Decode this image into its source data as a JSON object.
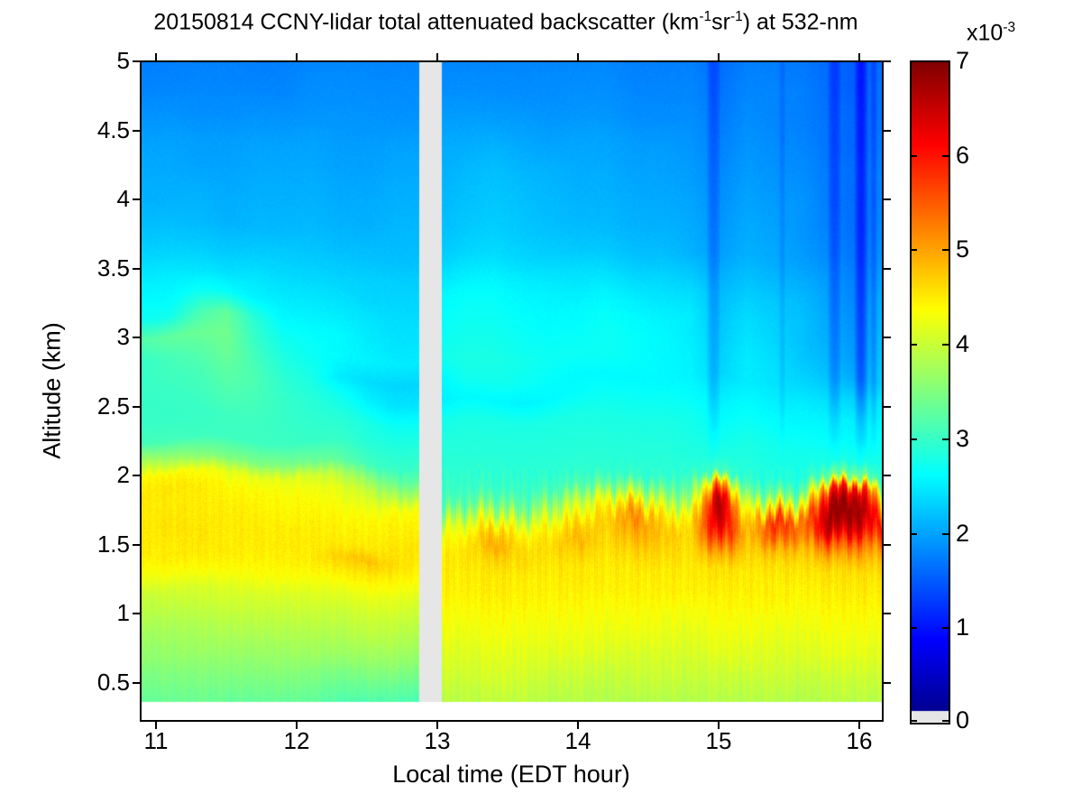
{
  "title": {
    "part1": "20150814 CCNY-lidar total attenuated backscatter (km",
    "sup1": "-1",
    "part2": "sr",
    "sup2": "-1",
    "part3": ") at 532-nm"
  },
  "axes": {
    "xlabel": "Local time (EDT hour)",
    "ylabel": "Altitude (km)",
    "x_ticks": [
      11,
      12,
      13,
      14,
      15,
      16
    ],
    "y_ticks": [
      5,
      4.5,
      4,
      3.5,
      3,
      2.5,
      2,
      1.5,
      1,
      0.5
    ]
  },
  "colorbar": {
    "ticks": [
      7,
      6,
      5,
      4,
      3,
      2,
      1,
      0
    ],
    "exponent_multiplier": "x10",
    "exponent": "-3",
    "min": 0,
    "max": 7,
    "colormap": "jet",
    "nodata_color": "#e6e6e6"
  },
  "chart_data": {
    "type": "heatmap",
    "units": "10^-3 km^-1 sr^-1",
    "xlabel": "Local time (EDT hour)",
    "ylabel": "Altitude (km)",
    "x_range": [
      10.89,
      16.16
    ],
    "y_range": [
      0.2,
      5.0
    ],
    "data_y_min": 0.36,
    "gap_time": [
      12.87,
      13.03
    ],
    "attenuation_stripes": [
      {
        "t": 14.96,
        "w": 0.05,
        "d": 0.28
      },
      {
        "t": 15.45,
        "w": 0.025,
        "d": 0.15
      },
      {
        "t": 15.82,
        "w": 0.05,
        "d": 0.32
      },
      {
        "t": 16.01,
        "w": 0.05,
        "d": 0.5
      },
      {
        "t": 16.1,
        "w": 0.025,
        "d": 0.25
      }
    ],
    "times": [
      10.9,
      11.1,
      11.3,
      11.5,
      11.7,
      11.9,
      12.1,
      12.3,
      12.5,
      12.7,
      12.85,
      13.05,
      13.2,
      13.4,
      13.6,
      13.8,
      14.0,
      14.2,
      14.4,
      14.6,
      14.8,
      15.0,
      15.2,
      15.4,
      15.6,
      15.8,
      16.0,
      16.16
    ],
    "altitudes": [
      5.0,
      4.8,
      4.6,
      4.4,
      4.2,
      4.0,
      3.8,
      3.6,
      3.45,
      3.3,
      3.15,
      3.0,
      2.85,
      2.7,
      2.55,
      2.4,
      2.25,
      2.1,
      2.0,
      1.9,
      1.8,
      1.7,
      1.6,
      1.5,
      1.4,
      1.3,
      1.15,
      1.0,
      0.85,
      0.7,
      0.55,
      0.36
    ],
    "values": [
      [
        1.75,
        1.75,
        1.75,
        1.75,
        1.75,
        1.75,
        1.8,
        1.8,
        1.8,
        1.8,
        1.8,
        1.8,
        1.8,
        1.8,
        1.8,
        1.8,
        1.8,
        1.8,
        1.75,
        1.75,
        1.75,
        1.6,
        1.75,
        1.75,
        1.7,
        1.6,
        1.5,
        1.65
      ],
      [
        1.8,
        1.8,
        1.8,
        1.8,
        1.8,
        1.8,
        1.85,
        1.85,
        1.85,
        1.85,
        1.85,
        1.85,
        1.85,
        1.85,
        1.85,
        1.85,
        1.85,
        1.85,
        1.8,
        1.8,
        1.8,
        1.65,
        1.8,
        1.8,
        1.75,
        1.6,
        1.5,
        1.7
      ],
      [
        1.9,
        1.9,
        1.85,
        1.85,
        1.9,
        1.9,
        1.9,
        1.9,
        1.9,
        1.9,
        1.9,
        1.95,
        1.95,
        1.95,
        1.95,
        1.9,
        1.9,
        1.9,
        1.85,
        1.85,
        1.85,
        1.7,
        1.85,
        1.8,
        1.75,
        1.65,
        1.55,
        1.7
      ],
      [
        2.0,
        2.0,
        1.95,
        1.95,
        2.0,
        2.0,
        2.0,
        1.95,
        1.95,
        2.0,
        2.0,
        2.05,
        2.05,
        2.1,
        2.05,
        2.0,
        2.0,
        2.0,
        1.95,
        1.95,
        1.9,
        1.75,
        1.9,
        1.85,
        1.8,
        1.65,
        1.55,
        1.75
      ],
      [
        2.05,
        2.05,
        2.0,
        2.0,
        2.05,
        2.05,
        2.05,
        2.0,
        2.0,
        2.05,
        2.05,
        2.1,
        2.15,
        2.2,
        2.15,
        2.1,
        2.05,
        2.05,
        2.0,
        2.0,
        1.95,
        1.8,
        1.95,
        1.9,
        1.85,
        1.7,
        1.6,
        1.8
      ],
      [
        2.1,
        2.1,
        2.1,
        2.05,
        2.1,
        2.1,
        2.1,
        2.05,
        2.05,
        2.1,
        2.1,
        2.15,
        2.2,
        2.25,
        2.2,
        2.15,
        2.1,
        2.1,
        2.05,
        2.05,
        2.0,
        1.85,
        2.0,
        1.95,
        1.9,
        1.7,
        1.6,
        1.8
      ],
      [
        2.2,
        2.2,
        2.15,
        2.1,
        2.15,
        2.15,
        2.15,
        2.1,
        2.1,
        2.15,
        2.15,
        2.2,
        2.25,
        2.3,
        2.25,
        2.2,
        2.15,
        2.15,
        2.1,
        2.1,
        2.05,
        1.9,
        2.05,
        2.0,
        1.9,
        1.75,
        1.6,
        1.85
      ],
      [
        2.35,
        2.35,
        2.3,
        2.25,
        2.3,
        2.3,
        2.25,
        2.2,
        2.2,
        2.2,
        2.2,
        2.3,
        2.35,
        2.4,
        2.35,
        2.3,
        2.25,
        2.25,
        2.2,
        2.2,
        2.1,
        1.95,
        2.1,
        2.05,
        1.95,
        1.8,
        1.65,
        1.9
      ],
      [
        2.5,
        2.5,
        2.45,
        2.4,
        2.45,
        2.4,
        2.35,
        2.3,
        2.3,
        2.3,
        2.3,
        2.45,
        2.5,
        2.55,
        2.5,
        2.45,
        2.4,
        2.4,
        2.35,
        2.35,
        2.25,
        2.05,
        2.2,
        2.15,
        2.05,
        1.9,
        1.7,
        2.0
      ],
      [
        2.6,
        2.6,
        2.7,
        2.65,
        2.55,
        2.5,
        2.45,
        2.4,
        2.35,
        2.35,
        2.35,
        2.6,
        2.65,
        2.65,
        2.6,
        2.55,
        2.5,
        2.55,
        2.5,
        2.45,
        2.4,
        2.15,
        2.3,
        2.25,
        2.15,
        1.95,
        1.75,
        2.1
      ],
      [
        2.7,
        2.75,
        3.1,
        3.3,
        2.9,
        2.6,
        2.55,
        2.5,
        2.45,
        2.4,
        2.4,
        2.65,
        2.7,
        2.7,
        2.65,
        2.6,
        2.6,
        2.65,
        2.6,
        2.55,
        2.5,
        2.2,
        2.4,
        2.3,
        2.2,
        2.0,
        1.8,
        2.15
      ],
      [
        3.2,
        3.3,
        3.35,
        3.4,
        3.0,
        2.75,
        2.65,
        2.6,
        2.5,
        2.45,
        2.45,
        2.7,
        2.75,
        2.75,
        2.7,
        2.65,
        2.65,
        2.7,
        2.65,
        2.6,
        2.5,
        2.25,
        2.45,
        2.35,
        2.2,
        2.05,
        1.85,
        2.2
      ],
      [
        3.0,
        3.1,
        3.2,
        3.35,
        3.1,
        2.85,
        2.7,
        2.6,
        2.55,
        2.5,
        2.5,
        2.75,
        2.8,
        2.8,
        2.75,
        2.7,
        2.7,
        2.7,
        2.65,
        2.6,
        2.55,
        2.3,
        2.5,
        2.4,
        2.25,
        2.1,
        1.9,
        2.25
      ],
      [
        3.0,
        3.05,
        3.1,
        3.25,
        3.15,
        2.95,
        2.8,
        2.5,
        2.4,
        2.35,
        2.35,
        2.6,
        2.75,
        2.75,
        2.7,
        2.65,
        2.6,
        2.6,
        2.6,
        2.6,
        2.55,
        2.35,
        2.5,
        2.45,
        2.35,
        2.2,
        2.0,
        2.3
      ],
      [
        3.0,
        3.0,
        3.05,
        3.15,
        3.1,
        3.0,
        2.9,
        2.75,
        2.55,
        2.45,
        2.45,
        2.55,
        2.6,
        2.6,
        2.55,
        2.6,
        2.65,
        2.7,
        2.7,
        2.7,
        2.65,
        2.5,
        2.6,
        2.55,
        2.5,
        2.4,
        2.3,
        2.5
      ],
      [
        3.0,
        3.0,
        3.0,
        3.05,
        3.05,
        3.0,
        2.95,
        2.9,
        2.8,
        2.7,
        2.7,
        2.75,
        2.8,
        2.8,
        2.8,
        2.8,
        2.8,
        2.8,
        2.8,
        2.8,
        2.75,
        2.6,
        2.7,
        2.65,
        2.6,
        2.55,
        2.5,
        2.6
      ],
      [
        3.1,
        3.1,
        3.05,
        3.05,
        3.05,
        3.05,
        3.0,
        3.0,
        2.9,
        2.85,
        2.85,
        2.85,
        2.85,
        2.85,
        2.85,
        2.85,
        2.85,
        2.85,
        2.85,
        2.85,
        2.8,
        2.7,
        2.8,
        2.75,
        2.7,
        2.65,
        2.6,
        2.7
      ],
      [
        3.9,
        3.8,
        3.6,
        3.5,
        3.5,
        3.5,
        3.4,
        3.3,
        3.1,
        3.0,
        3.0,
        2.9,
        2.9,
        2.9,
        2.9,
        2.9,
        2.9,
        2.9,
        2.9,
        2.9,
        2.85,
        2.85,
        2.85,
        2.8,
        2.8,
        2.8,
        2.8,
        2.8
      ],
      [
        4.4,
        4.45,
        4.35,
        4.2,
        4.2,
        4.2,
        4.1,
        3.9,
        3.6,
        3.3,
        3.25,
        2.95,
        2.95,
        2.95,
        2.95,
        2.95,
        2.95,
        2.95,
        3.0,
        2.95,
        2.95,
        3.1,
        2.9,
        2.9,
        2.85,
        3.4,
        3.5,
        2.9
      ],
      [
        4.5,
        4.55,
        4.5,
        4.4,
        4.4,
        4.35,
        4.3,
        4.2,
        4.0,
        3.8,
        3.75,
        3.0,
        3.0,
        3.05,
        3.05,
        3.1,
        3.15,
        3.3,
        3.8,
        3.4,
        3.2,
        5.5,
        3.2,
        3.5,
        3.3,
        6.0,
        6.3,
        4.2
      ],
      [
        4.5,
        4.5,
        4.5,
        4.45,
        4.45,
        4.4,
        4.4,
        4.3,
        4.2,
        4.3,
        4.35,
        3.1,
        3.2,
        3.5,
        3.3,
        3.6,
        3.8,
        4.2,
        4.8,
        4.1,
        3.6,
        6.8,
        3.9,
        4.8,
        4.4,
        6.8,
        6.8,
        5.2
      ],
      [
        4.5,
        4.55,
        4.5,
        4.5,
        4.5,
        4.45,
        4.45,
        4.4,
        4.4,
        4.45,
        4.45,
        3.6,
        3.8,
        4.2,
        3.9,
        4.1,
        4.3,
        4.6,
        5.3,
        4.6,
        4.3,
        6.8,
        4.4,
        6.0,
        5.3,
        6.9,
        6.7,
        6.0
      ],
      [
        4.5,
        4.55,
        4.55,
        4.5,
        4.5,
        4.5,
        4.5,
        4.45,
        4.45,
        4.5,
        4.5,
        4.2,
        4.3,
        4.8,
        4.4,
        4.5,
        4.7,
        4.7,
        5.0,
        4.8,
        4.6,
        6.5,
        4.8,
        5.6,
        5.2,
        6.6,
        6.2,
        5.6
      ],
      [
        4.5,
        4.5,
        4.55,
        4.5,
        4.5,
        4.5,
        4.5,
        4.5,
        4.5,
        4.55,
        4.55,
        4.4,
        4.5,
        5.0,
        4.6,
        4.6,
        4.9,
        4.6,
        4.8,
        4.7,
        4.6,
        5.8,
        4.7,
        4.9,
        4.8,
        5.6,
        5.4,
        5.0
      ],
      [
        4.45,
        4.5,
        4.5,
        4.5,
        4.45,
        4.45,
        4.5,
        4.7,
        4.8,
        4.6,
        4.5,
        4.5,
        4.55,
        4.7,
        4.6,
        4.55,
        4.7,
        4.55,
        4.6,
        4.6,
        4.55,
        5.0,
        4.6,
        4.6,
        4.6,
        4.9,
        4.9,
        4.7
      ],
      [
        4.3,
        4.35,
        4.4,
        4.4,
        4.35,
        4.35,
        4.4,
        4.5,
        4.55,
        4.45,
        4.4,
        4.5,
        4.5,
        4.55,
        4.5,
        4.5,
        4.55,
        4.5,
        4.5,
        4.5,
        4.5,
        4.6,
        4.5,
        4.5,
        4.5,
        4.6,
        4.6,
        4.55
      ],
      [
        4.0,
        4.05,
        4.1,
        4.15,
        4.1,
        4.1,
        4.15,
        4.2,
        4.25,
        4.2,
        4.15,
        4.45,
        4.45,
        4.5,
        4.45,
        4.45,
        4.5,
        4.45,
        4.45,
        4.45,
        4.45,
        4.5,
        4.45,
        4.45,
        4.4,
        4.5,
        4.5,
        4.45
      ],
      [
        3.85,
        3.9,
        3.95,
        4.0,
        3.95,
        3.95,
        4.0,
        4.0,
        4.05,
        4.0,
        3.95,
        4.35,
        4.35,
        4.4,
        4.35,
        4.35,
        4.4,
        4.35,
        4.35,
        4.3,
        4.3,
        4.4,
        4.35,
        4.3,
        4.3,
        4.4,
        4.4,
        4.35
      ],
      [
        3.7,
        3.75,
        3.8,
        3.85,
        3.8,
        3.8,
        3.85,
        3.85,
        3.9,
        3.85,
        3.8,
        4.25,
        4.25,
        4.3,
        4.25,
        4.25,
        4.3,
        4.25,
        4.25,
        4.2,
        4.2,
        4.3,
        4.25,
        4.2,
        4.2,
        4.3,
        4.3,
        4.25
      ],
      [
        3.6,
        3.65,
        3.7,
        3.7,
        3.65,
        3.65,
        3.7,
        3.7,
        3.7,
        3.65,
        3.6,
        4.15,
        4.15,
        4.2,
        4.15,
        4.15,
        4.2,
        4.15,
        4.1,
        4.1,
        4.1,
        4.2,
        4.15,
        4.1,
        4.1,
        4.2,
        4.2,
        4.15
      ],
      [
        3.45,
        3.5,
        3.55,
        3.55,
        3.5,
        3.5,
        3.5,
        3.45,
        3.45,
        3.4,
        3.35,
        4.05,
        4.05,
        4.1,
        4.05,
        4.0,
        4.05,
        4.0,
        4.0,
        4.0,
        4.0,
        4.05,
        4.0,
        4.0,
        3.95,
        4.05,
        4.05,
        4.0
      ],
      [
        3.3,
        3.35,
        3.4,
        3.35,
        3.3,
        3.3,
        3.3,
        3.2,
        3.15,
        3.1,
        3.05,
        3.9,
        3.9,
        3.95,
        3.9,
        3.85,
        3.9,
        3.85,
        3.85,
        3.85,
        3.85,
        3.9,
        3.85,
        3.85,
        3.8,
        3.9,
        3.9,
        3.85
      ]
    ]
  }
}
